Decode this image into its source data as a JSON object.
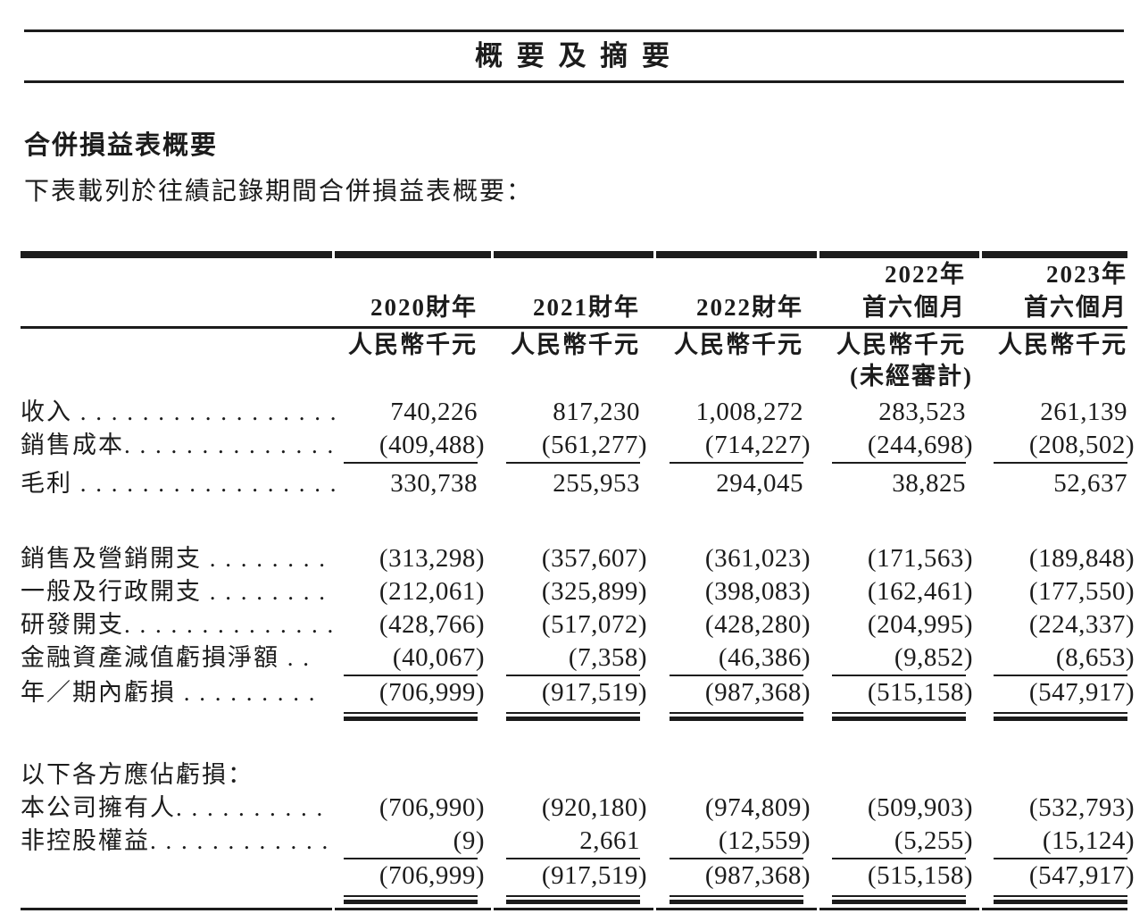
{
  "page": {
    "title": "概 要 及 摘 要",
    "section_heading": "合併損益表概要",
    "intro": "下表載列於往績記錄期間合併損益表概要："
  },
  "colors": {
    "ink": "#1c1c1c",
    "background": "#ffffff"
  },
  "table": {
    "columns": [
      {
        "top": "",
        "main": "2020財年",
        "unit": "人民幣千元",
        "note": ""
      },
      {
        "top": "",
        "main": "2021財年",
        "unit": "人民幣千元",
        "note": ""
      },
      {
        "top": "",
        "main": "2022財年",
        "unit": "人民幣千元",
        "note": ""
      },
      {
        "top": "2022年",
        "main": "首六個月",
        "unit": "人民幣千元",
        "note": "(未經審計)"
      },
      {
        "top": "2023年",
        "main": "首六個月",
        "unit": "人民幣千元",
        "note": ""
      }
    ],
    "rows": [
      {
        "label": "收入 . . . . . . . . . . . . . . . . .",
        "values": [
          "740,226",
          "817,230",
          "1,008,272",
          "283,523",
          "261,139"
        ]
      },
      {
        "label": "銷售成本. . . . . . . . . . . . . .",
        "values": [
          "(409,488)",
          "(561,277)",
          "(714,227)",
          "(244,698)",
          "(208,502)"
        ]
      },
      {
        "label": "毛利 . . . . . . . . . . . . . . . . .",
        "values": [
          "330,738",
          "255,953",
          "294,045",
          "38,825",
          "52,637"
        ]
      },
      {
        "label": "銷售及營銷開支 . . . . . . . .",
        "values": [
          "(313,298)",
          "(357,607)",
          "(361,023)",
          "(171,563)",
          "(189,848)"
        ]
      },
      {
        "label": "一般及行政開支 . . . . . . . .",
        "values": [
          "(212,061)",
          "(325,899)",
          "(398,083)",
          "(162,461)",
          "(177,550)"
        ]
      },
      {
        "label": "研發開支. . . . . . . . . . . . . .",
        "values": [
          "(428,766)",
          "(517,072)",
          "(428,280)",
          "(204,995)",
          "(224,337)"
        ]
      },
      {
        "label": "金融資產減值虧損淨額 . .",
        "values": [
          "(40,067)",
          "(7,358)",
          "(46,386)",
          "(9,852)",
          "(8,653)"
        ]
      },
      {
        "label": "年／期內虧損 . . . . . . . . .",
        "values": [
          "(706,999)",
          "(917,519)",
          "(987,368)",
          "(515,158)",
          "(547,917)"
        ]
      },
      {
        "label": "以下各方應佔虧損：",
        "values": [
          "",
          "",
          "",
          "",
          ""
        ]
      },
      {
        "label": "本公司擁有人. . . . . . . . . .",
        "values": [
          "(706,990)",
          "(920,180)",
          "(974,809)",
          "(509,903)",
          "(532,793)"
        ]
      },
      {
        "label": "非控股權益. . . . . . . . . . . .",
        "values": [
          "(9)",
          "2,661",
          "(12,559)",
          "(5,255)",
          "(15,124)"
        ]
      },
      {
        "label": "",
        "values": [
          "(706,999)",
          "(917,519)",
          "(987,368)",
          "(515,158)",
          "(547,917)"
        ]
      }
    ]
  }
}
